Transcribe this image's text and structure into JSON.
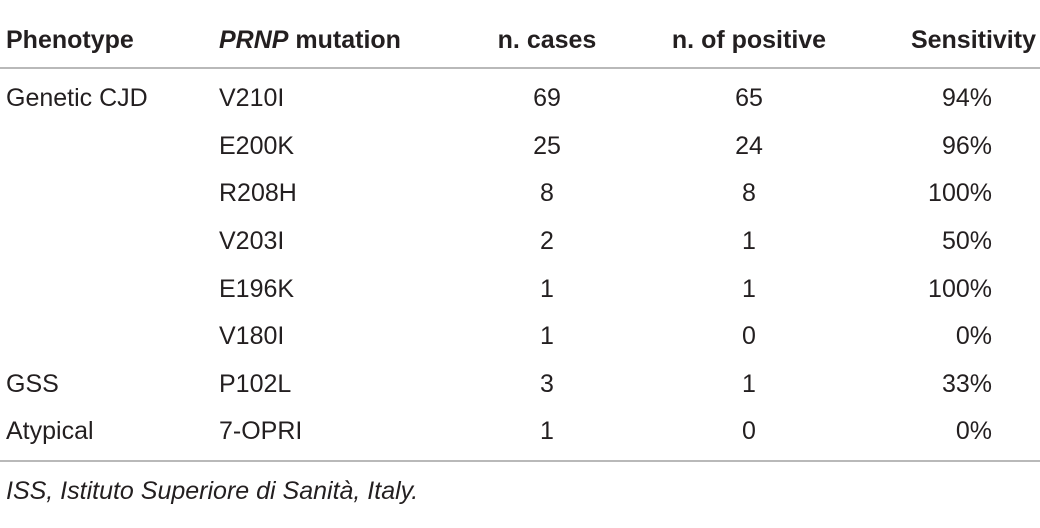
{
  "table": {
    "headers": {
      "phenotype": "Phenotype",
      "mutation_italic": "PRNP",
      "mutation_rest": " mutation",
      "cases": "n. cases",
      "positive": "n. of positive",
      "sensitivity": "Sensitivity"
    },
    "rows": [
      {
        "phenotype": "Genetic CJD",
        "mutation": "V210I",
        "cases": "69",
        "positive": "65",
        "sensitivity": "94%"
      },
      {
        "phenotype": "",
        "mutation": "E200K",
        "cases": "25",
        "positive": "24",
        "sensitivity": "96%"
      },
      {
        "phenotype": "",
        "mutation": "R208H",
        "cases": "8",
        "positive": "8",
        "sensitivity": "100%"
      },
      {
        "phenotype": "",
        "mutation": "V203I",
        "cases": "2",
        "positive": "1",
        "sensitivity": "50%"
      },
      {
        "phenotype": "",
        "mutation": "E196K",
        "cases": "1",
        "positive": "1",
        "sensitivity": "100%"
      },
      {
        "phenotype": "",
        "mutation": "V180I",
        "cases": "1",
        "positive": "0",
        "sensitivity": "0%"
      },
      {
        "phenotype": "GSS",
        "mutation": "P102L",
        "cases": "3",
        "positive": "1",
        "sensitivity": "33%"
      },
      {
        "phenotype": "Atypical",
        "mutation": "7-OPRI",
        "cases": "1",
        "positive": "0",
        "sensitivity": "0%"
      }
    ]
  },
  "footnote": "ISS, Istituto Superiore di Sanità, Italy."
}
